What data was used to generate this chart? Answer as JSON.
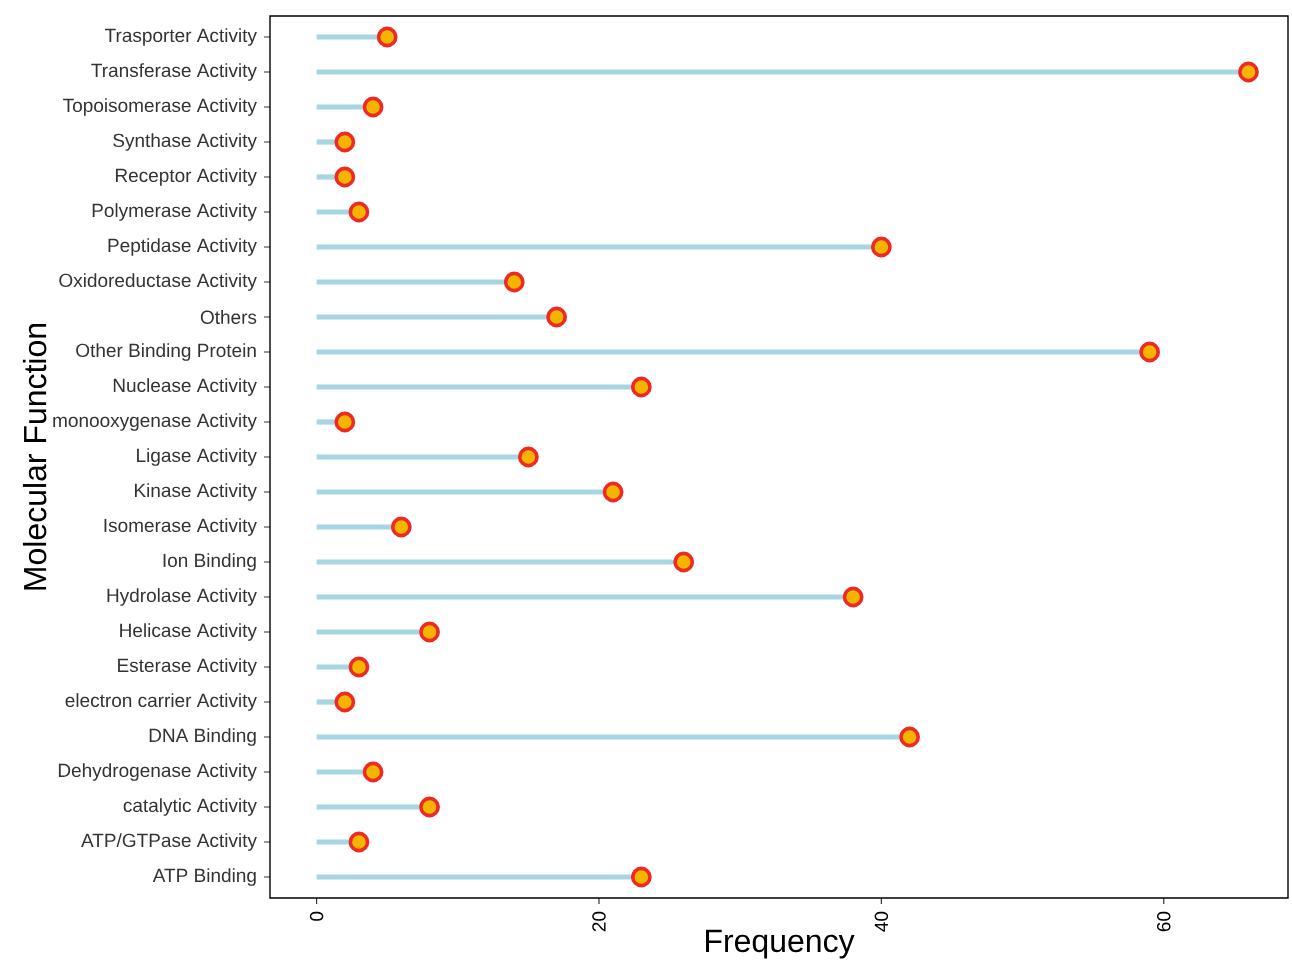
{
  "chart_data": {
    "type": "lollipop",
    "orientation": "horizontal",
    "xlabel": "Frequency",
    "ylabel": "Molecular Function",
    "categories": [
      "Trasporter Activity",
      "Transferase Activity",
      "Topoisomerase Activity",
      "Synthase Activity",
      "Receptor Activity",
      "Polymerase Activity",
      "Peptidase Activity",
      "Oxidoreductase Activity",
      "Others",
      "Other Binding Protein",
      "Nuclease Activity",
      "monooxygenase Activity",
      "Ligase Activity",
      "Kinase Activity",
      "Isomerase Activity",
      "Ion Binding",
      "Hydrolase Activity",
      "Helicase Activity",
      "Esterase Activity",
      "electron carrier Activity",
      "DNA Binding",
      "Dehydrogenase Activity",
      "catalytic Activity",
      "ATP/GTPase Activity",
      "ATP Binding"
    ],
    "values": [
      5,
      66,
      4,
      2,
      2,
      3,
      40,
      14,
      17,
      59,
      23,
      2,
      15,
      21,
      6,
      26,
      38,
      8,
      3,
      2,
      42,
      4,
      8,
      3,
      23
    ],
    "color": "#f5b400",
    "marker": "circle",
    "xlim": [
      -3.3,
      68.8
    ],
    "xticks": [
      0,
      20,
      40,
      60
    ],
    "grid": false
  }
}
